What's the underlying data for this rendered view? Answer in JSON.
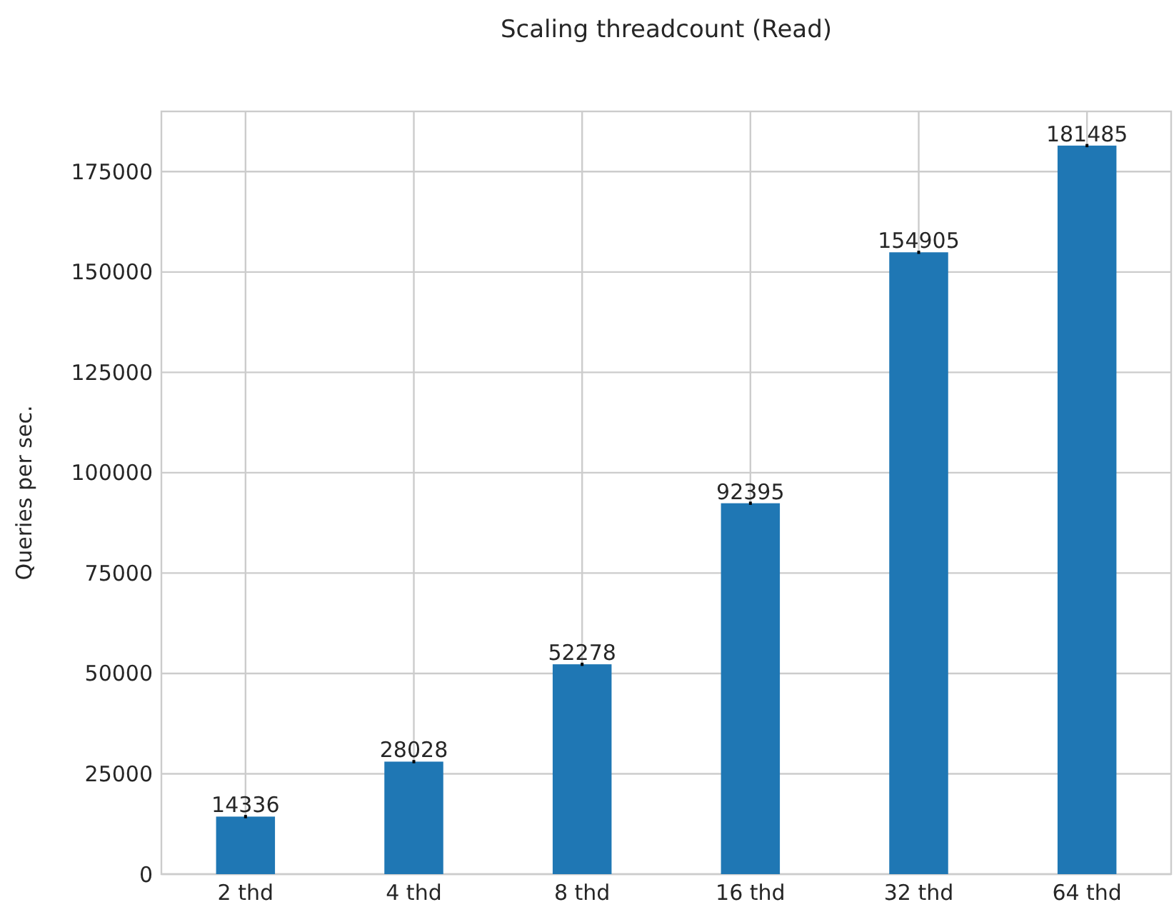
{
  "chart_data": {
    "type": "bar",
    "title": "Scaling threadcount (Read)",
    "ylabel": "Queries per sec.",
    "categories": [
      "2 thd",
      "4 thd",
      "8 thd",
      "16 thd",
      "32 thd",
      "64 thd"
    ],
    "values": [
      14336,
      28028,
      52278,
      92395,
      154905,
      181485
    ],
    "errors": [
      400,
      400,
      400,
      400,
      400,
      400
    ],
    "color": "#1f77b4",
    "ylim": [
      0,
      190000
    ],
    "yticks": [
      0,
      25000,
      50000,
      75000,
      100000,
      125000,
      150000,
      175000
    ],
    "grid": true,
    "data_labels": true
  }
}
